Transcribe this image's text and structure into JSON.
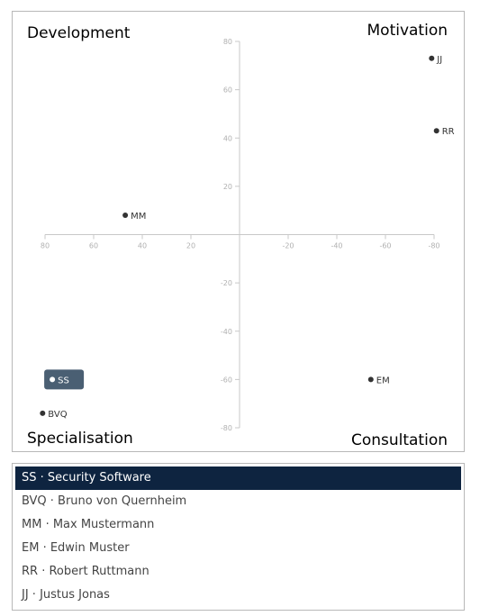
{
  "quadrants": {
    "top_left": "Development",
    "top_right": "Motivation",
    "bottom_left": "Specialisation",
    "bottom_right": "Consultation"
  },
  "colors": {
    "axis": "#c8c8c8",
    "tick_text": "#b0b0b0",
    "point": "#333333",
    "selected_badge": "#4a5f73",
    "selected_row": "#0e2440"
  },
  "chart_data": {
    "type": "scatter",
    "title": "",
    "xlabel": "",
    "ylabel": "",
    "xlim": [
      80,
      -80
    ],
    "ylim": [
      -80,
      80
    ],
    "x_ticks": [
      80,
      60,
      40,
      20,
      -20,
      -40,
      -60,
      -80
    ],
    "y_ticks": [
      80,
      60,
      40,
      20,
      -20,
      -40,
      -60,
      -80
    ],
    "points": [
      {
        "label": "SS",
        "x": 77,
        "y": -60,
        "selected": true
      },
      {
        "label": "BVQ",
        "x": 81,
        "y": -74,
        "selected": false
      },
      {
        "label": "MM",
        "x": 47,
        "y": 8,
        "selected": false
      },
      {
        "label": "EM",
        "x": -54,
        "y": -60,
        "selected": false
      },
      {
        "label": "RR",
        "x": -81,
        "y": 43,
        "selected": false
      },
      {
        "label": "JJ",
        "x": -79,
        "y": 73,
        "selected": false
      }
    ]
  },
  "list": {
    "items": [
      {
        "label": "SS · Security Software",
        "selected": true
      },
      {
        "label": "BVQ · Bruno von Quernheim",
        "selected": false
      },
      {
        "label": "MM · Max Mustermann",
        "selected": false
      },
      {
        "label": "EM · Edwin Muster",
        "selected": false
      },
      {
        "label": "RR · Robert Ruttmann",
        "selected": false
      },
      {
        "label": "JJ · Justus Jonas",
        "selected": false
      }
    ]
  }
}
